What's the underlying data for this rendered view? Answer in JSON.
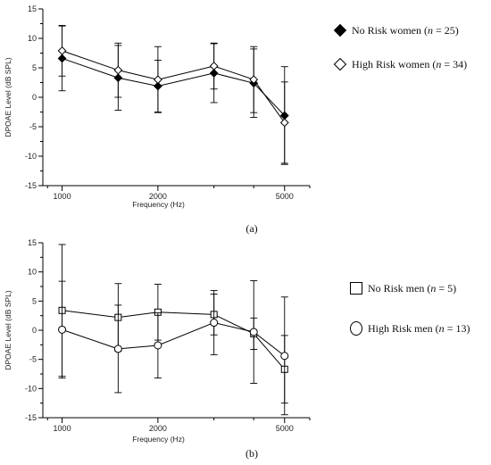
{
  "chart_data": [
    {
      "type": "line",
      "panel_label": "(a)",
      "xlabel": "Frequency (Hz)",
      "ylabel": "DPOAE Level (dB SPL)",
      "xscale": "log",
      "xlim": [
        870,
        6000
      ],
      "ylim": [
        -15,
        15
      ],
      "xticks": [
        1000,
        2000,
        5000
      ],
      "yticks": [
        -15,
        -10,
        -5,
        0,
        5,
        10,
        15
      ],
      "grid": false,
      "legend_position": "right",
      "series": [
        {
          "legend": {
            "label": "No Risk women (",
            "n_label": "n",
            "suffix": " = 25)"
          },
          "marker": "diamond-filled",
          "x": [
            1000,
            1500,
            2000,
            3000,
            4000,
            5000
          ],
          "y": [
            6.6,
            3.3,
            1.9,
            4.1,
            2.4,
            -3.1
          ],
          "error": [
            5.5,
            5.5,
            4.4,
            5.0,
            5.8,
            8.3
          ]
        },
        {
          "legend": {
            "label": "High Risk women (",
            "n_label": "n",
            "suffix": " = 34)"
          },
          "marker": "diamond-open",
          "x": [
            1000,
            1500,
            2000,
            3000,
            4000,
            5000
          ],
          "y": [
            7.9,
            4.6,
            3.0,
            5.3,
            3.0,
            -4.3
          ],
          "error": [
            4.3,
            4.6,
            5.6,
            3.9,
            5.6,
            6.9
          ]
        }
      ]
    },
    {
      "type": "line",
      "panel_label": "(b)",
      "xlabel": "Frequency (Hz)",
      "ylabel": "DPOAE Level (dB SPL)",
      "xscale": "log",
      "xlim": [
        870,
        6000
      ],
      "ylim": [
        -15,
        15
      ],
      "xticks": [
        1000,
        2000,
        5000
      ],
      "yticks": [
        -15,
        -10,
        -5,
        0,
        5,
        10,
        15
      ],
      "grid": false,
      "legend_position": "right",
      "series": [
        {
          "legend": {
            "label": "No Risk men (",
            "n_label": "n",
            "suffix": " = 5)"
          },
          "marker": "square-open",
          "x": [
            1000,
            1500,
            2000,
            3000,
            4000,
            5000
          ],
          "y": [
            3.4,
            2.2,
            3.1,
            2.7,
            -0.6,
            -6.7
          ],
          "error": [
            11.3,
            5.8,
            4.8,
            3.5,
            2.7,
            5.8
          ]
        },
        {
          "legend": {
            "label": "High Risk men (",
            "n_label": "n",
            "suffix": " = 13)"
          },
          "marker": "circle-open",
          "x": [
            1000,
            1500,
            2000,
            3000,
            4000,
            5000
          ],
          "y": [
            0.1,
            -3.2,
            -2.6,
            1.3,
            -0.3,
            -4.4
          ],
          "error": [
            8.3,
            7.5,
            5.6,
            5.5,
            8.8,
            10.1
          ]
        }
      ]
    }
  ]
}
